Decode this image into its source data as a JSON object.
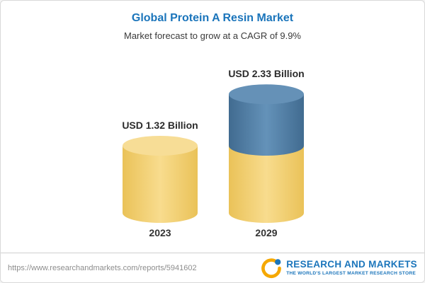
{
  "chart_data": {
    "type": "bar",
    "variant": "3d-cylinder",
    "title": "Global Protein A Resin Market",
    "subtitle": "Market forecast to grow at a CAGR of 9.9%",
    "unit": "USD Billion",
    "categories": [
      "2023",
      "2029"
    ],
    "values": [
      1.32,
      2.33
    ],
    "value_labels": [
      "USD 1.32 Billion",
      "USD 2.33 Billion"
    ],
    "cagr_percent": 9.9,
    "ylim": [
      0,
      2.6
    ],
    "legend": "none",
    "grid": "off",
    "stacking_note": "2029 cylinder shows the 2023 base level in yellow with the incremental growth segment in blue on top",
    "colors": {
      "base": "#F2CC62",
      "base_top": "#F7DD96",
      "increment": "#4C7DA6",
      "increment_top": "#6591B7",
      "title": "#1B75BB",
      "label": "#333333"
    }
  },
  "footer": {
    "url": "https://www.researchandmarkets.com/reports/5941602",
    "logo_text": "RESEARCH AND MARKETS",
    "tagline": "THE WORLD'S LARGEST MARKET RESEARCH STORE",
    "brand_color": "#1B75BB",
    "accent_color": "#F5A800"
  }
}
